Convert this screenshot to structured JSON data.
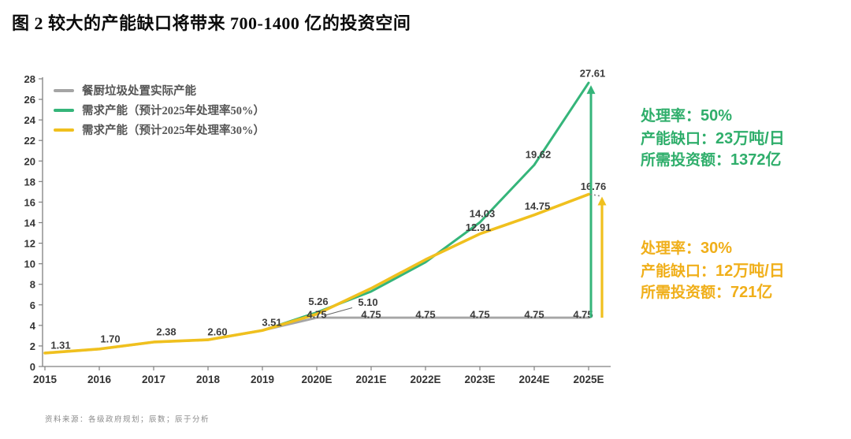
{
  "title": "图 2 较大的产能缺口将带来 700-1400 亿的投资空间",
  "footer": "资料来源：各级政府规划；辰数；辰于分析",
  "colors": {
    "gray_line": "#A5A5A5",
    "green_line": "#35B57A",
    "yellow_line": "#F0C01E",
    "green_text": "#2FAE6B",
    "yellow_text": "#F0AF1A",
    "axis": "#808080"
  },
  "legend": [
    {
      "label": "餐厨垃圾处置实际产能",
      "color": "#A5A5A5"
    },
    {
      "label": "需求产能（预计2025年处理率50%）",
      "color": "#35B57A"
    },
    {
      "label": "需求产能（预计2025年处理率30%）",
      "color": "#F0C01E"
    }
  ],
  "annotations": {
    "green": {
      "lines": [
        {
          "label": "处理率：",
          "value": "50%"
        },
        {
          "label": "产能缺口：",
          "value": "23万吨/日"
        },
        {
          "label": "所需投资额：",
          "value": "1372亿"
        }
      ]
    },
    "yellow": {
      "lines": [
        {
          "label": "处理率：",
          "value": "30%"
        },
        {
          "label": "产能缺口：",
          "value": "12万吨/日"
        },
        {
          "label": "所需投资额：",
          "value": "721亿"
        }
      ]
    }
  },
  "chart_data": {
    "type": "line",
    "x": [
      "2015",
      "2016",
      "2017",
      "2018",
      "2019",
      "2020E",
      "2021E",
      "2022E",
      "2023E",
      "2024E",
      "2025E"
    ],
    "ylim": [
      0,
      28
    ],
    "ytick_step": 2,
    "grid": false,
    "legend_position": "top-left",
    "series": [
      {
        "key": "actual",
        "name": "餐厨垃圾处置实际产能",
        "color": "#A5A5A5",
        "width": 2.8,
        "values": [
          1.31,
          1.7,
          2.38,
          2.6,
          3.51,
          4.75,
          4.75,
          4.75,
          4.75,
          4.75,
          4.75
        ],
        "labels": [
          {
            "i": 0,
            "t": "1.31",
            "dx": 20,
            "dy": -10
          },
          {
            "i": 1,
            "t": "1.70",
            "dx": 14,
            "dy": -13
          },
          {
            "i": 2,
            "t": "2.38",
            "dx": 16,
            "dy": -13
          },
          {
            "i": 3,
            "t": "2.60",
            "dx": 12,
            "dy": -10
          },
          {
            "i": 4,
            "t": "3.51",
            "dx": 12,
            "dy": -10
          },
          {
            "i": 5,
            "t": "4.75",
            "dx": 0,
            "dy": -4
          },
          {
            "i": 6,
            "t": "4.75",
            "dx": 0,
            "dy": -4
          },
          {
            "i": 7,
            "t": "4.75",
            "dx": 0,
            "dy": -4
          },
          {
            "i": 8,
            "t": "4.75",
            "dx": 0,
            "dy": -4
          },
          {
            "i": 9,
            "t": "4.75",
            "dx": 0,
            "dy": -4
          },
          {
            "i": 10,
            "t": "4.75",
            "dx": -7,
            "dy": -4
          }
        ]
      },
      {
        "key": "demand-50pct",
        "name": "需求产能（预计2025年处理率50%）",
        "color": "#35B57A",
        "width": 3,
        "values": [
          1.31,
          1.7,
          2.38,
          2.6,
          3.51,
          5.26,
          7.3,
          10.15,
          14.03,
          19.62,
          27.61
        ],
        "labels": [
          {
            "i": 5,
            "t": "5.26",
            "dx": 2,
            "dy": -14
          },
          {
            "i": 8,
            "t": "14.03",
            "dx": 3,
            "dy": -11
          },
          {
            "i": 9,
            "t": "19.62",
            "dx": 5,
            "dy": -13
          },
          {
            "i": 10,
            "t": "27.61",
            "dx": 5,
            "dy": -12
          }
        ]
      },
      {
        "key": "demand-30pct",
        "name": "需求产能（预计2025年处理率30%）",
        "color": "#F0C01E",
        "width": 3.6,
        "values": [
          1.31,
          1.7,
          2.38,
          2.6,
          3.51,
          5.1,
          7.6,
          10.4,
          12.91,
          14.75,
          16.76
        ],
        "labels": [
          {
            "i": 5,
            "t": "5.10",
            "dx": 65,
            "dy": -15,
            "leader": true
          },
          {
            "i": 8,
            "t": "12.91",
            "dx": -2,
            "dy": -8
          },
          {
            "i": 9,
            "t": "14.75",
            "dx": 4,
            "dy": -11
          },
          {
            "i": 10,
            "t": "16.76",
            "dx": 6,
            "dy": -10
          }
        ]
      }
    ],
    "arrows": [
      {
        "xi": 10,
        "dx": 3,
        "v1": 4.75,
        "v2": 27.61,
        "color": "#35B57A",
        "w": 3,
        "connector": false
      },
      {
        "xi": 10,
        "dx": 17,
        "v1": 4.75,
        "v2": 16.76,
        "color": "#F0C01E",
        "w": 3.2,
        "connector": true
      }
    ]
  }
}
